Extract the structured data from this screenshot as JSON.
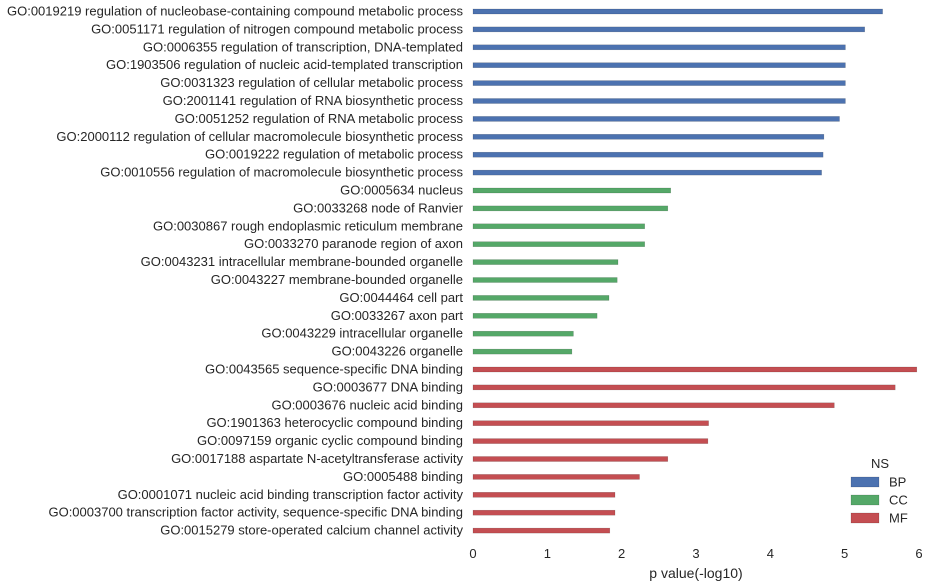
{
  "chart_data": {
    "type": "bar",
    "orientation": "horizontal",
    "xlabel": "p value(-log10)",
    "ylabel": "",
    "xlim": [
      0,
      6
    ],
    "xticks": [
      0,
      1,
      2,
      3,
      4,
      5,
      6
    ],
    "grid": false,
    "legend": {
      "title": "NS",
      "placement": "lower-right",
      "entries": [
        {
          "name": "BP",
          "color": "#4c72b0"
        },
        {
          "name": "CC",
          "color": "#55a868"
        },
        {
          "name": "MF",
          "color": "#c44e52"
        }
      ]
    },
    "bars": [
      {
        "label": "GO:0019219 regulation of nucleobase-containing compound metabolic process",
        "ns": "BP",
        "value": 5.51
      },
      {
        "label": "GO:0051171 regulation of nitrogen compound metabolic process",
        "ns": "BP",
        "value": 5.27
      },
      {
        "label": "GO:0006355 regulation of transcription, DNA-templated",
        "ns": "BP",
        "value": 5.01
      },
      {
        "label": "GO:1903506 regulation of nucleic acid-templated transcription",
        "ns": "BP",
        "value": 5.01
      },
      {
        "label": "GO:0031323 regulation of cellular metabolic process",
        "ns": "BP",
        "value": 5.01
      },
      {
        "label": "GO:2001141 regulation of RNA biosynthetic process",
        "ns": "BP",
        "value": 5.01
      },
      {
        "label": "GO:0051252 regulation of RNA metabolic process",
        "ns": "BP",
        "value": 4.93
      },
      {
        "label": "GO:2000112 regulation of cellular macromolecule biosynthetic process",
        "ns": "BP",
        "value": 4.72
      },
      {
        "label": "GO:0019222 regulation of metabolic process",
        "ns": "BP",
        "value": 4.71
      },
      {
        "label": "GO:0010556 regulation of macromolecule biosynthetic process",
        "ns": "BP",
        "value": 4.69
      },
      {
        "label": "GO:0005634 nucleus",
        "ns": "CC",
        "value": 2.66
      },
      {
        "label": "GO:0033268 node of Ranvier",
        "ns": "CC",
        "value": 2.62
      },
      {
        "label": "GO:0030867 rough endoplasmic reticulum membrane",
        "ns": "CC",
        "value": 2.31
      },
      {
        "label": "GO:0033270 paranode region of axon",
        "ns": "CC",
        "value": 2.31
      },
      {
        "label": "GO:0043231 intracellular membrane-bounded organelle",
        "ns": "CC",
        "value": 1.95
      },
      {
        "label": "GO:0043227 membrane-bounded organelle",
        "ns": "CC",
        "value": 1.94
      },
      {
        "label": "GO:0044464 cell part",
        "ns": "CC",
        "value": 1.83
      },
      {
        "label": "GO:0033267 axon part",
        "ns": "CC",
        "value": 1.67
      },
      {
        "label": "GO:0043229 intracellular organelle",
        "ns": "CC",
        "value": 1.35
      },
      {
        "label": "GO:0043226 organelle",
        "ns": "CC",
        "value": 1.33
      },
      {
        "label": "GO:0043565 sequence-specific DNA binding",
        "ns": "MF",
        "value": 5.97
      },
      {
        "label": "GO:0003677 DNA binding",
        "ns": "MF",
        "value": 5.68
      },
      {
        "label": "GO:0003676 nucleic acid binding",
        "ns": "MF",
        "value": 4.86
      },
      {
        "label": "GO:1901363 heterocyclic compound binding",
        "ns": "MF",
        "value": 3.17
      },
      {
        "label": "GO:0097159 organic cyclic compound binding",
        "ns": "MF",
        "value": 3.16
      },
      {
        "label": "GO:0017188 aspartate N-acetyltransferase activity",
        "ns": "MF",
        "value": 2.62
      },
      {
        "label": "GO:0005488 binding",
        "ns": "MF",
        "value": 2.24
      },
      {
        "label": "GO:0001071 nucleic acid binding transcription factor activity",
        "ns": "MF",
        "value": 1.91
      },
      {
        "label": "GO:0003700 transcription factor activity, sequence-specific DNA binding",
        "ns": "MF",
        "value": 1.91
      },
      {
        "label": "GO:0015279 store-operated calcium channel activity",
        "ns": "MF",
        "value": 1.84
      }
    ]
  }
}
